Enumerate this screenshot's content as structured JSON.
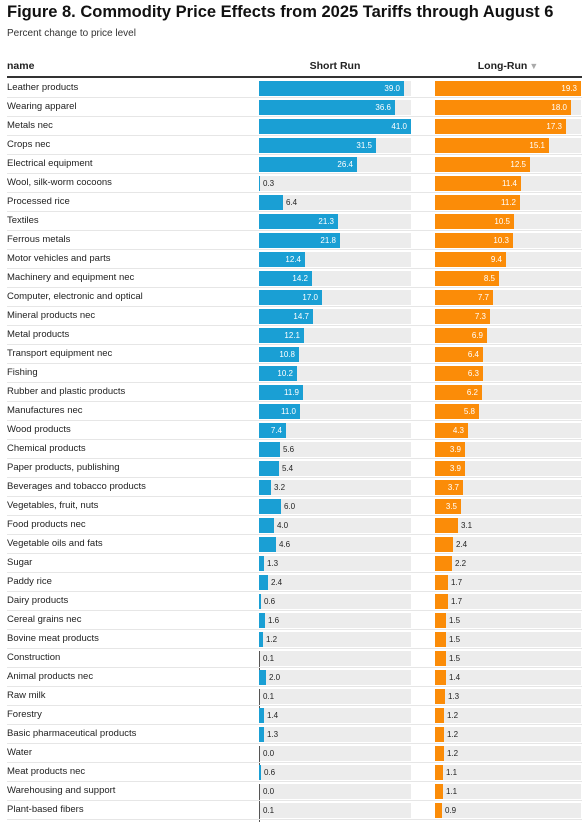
{
  "title": "Figure 8. Commodity Price Effects from 2025 Tariffs through August 6",
  "subtitle": "Percent change to price level",
  "headers": {
    "name": "name",
    "short_run": "Short Run",
    "long_run": "Long-Run",
    "sort_icon": "sort-down-icon"
  },
  "colors": {
    "short_run": "#1a9fd4",
    "long_run": "#fb8c08",
    "track": "#ececec"
  },
  "chart_data": {
    "type": "bar",
    "orientation": "horizontal",
    "title": "Figure 8. Commodity Price Effects from 2025 Tariffs through August 6",
    "subtitle": "Percent change to price level",
    "sorted_by": "Long-Run",
    "sort_order": "descending",
    "series": [
      {
        "name": "Short Run",
        "color": "#1a9fd4",
        "max": 41.0
      },
      {
        "name": "Long-Run",
        "color": "#fb8c08",
        "max": 19.3
      }
    ],
    "rows": [
      {
        "name": "Leather products",
        "short_run": 39.0,
        "long_run": 19.3
      },
      {
        "name": "Wearing apparel",
        "short_run": 36.6,
        "long_run": 18.0
      },
      {
        "name": "Metals nec",
        "short_run": 41.0,
        "long_run": 17.3
      },
      {
        "name": "Crops nec",
        "short_run": 31.5,
        "long_run": 15.1
      },
      {
        "name": "Electrical equipment",
        "short_run": 26.4,
        "long_run": 12.5
      },
      {
        "name": "Wool, silk-worm cocoons",
        "short_run": 0.3,
        "long_run": 11.4
      },
      {
        "name": "Processed rice",
        "short_run": 6.4,
        "long_run": 11.2
      },
      {
        "name": "Textiles",
        "short_run": 21.3,
        "long_run": 10.5
      },
      {
        "name": "Ferrous metals",
        "short_run": 21.8,
        "long_run": 10.3
      },
      {
        "name": "Motor vehicles and parts",
        "short_run": 12.4,
        "long_run": 9.4
      },
      {
        "name": "Machinery and equipment nec",
        "short_run": 14.2,
        "long_run": 8.5
      },
      {
        "name": "Computer, electronic and optical",
        "short_run": 17.0,
        "long_run": 7.7
      },
      {
        "name": "Mineral products nec",
        "short_run": 14.7,
        "long_run": 7.3
      },
      {
        "name": "Metal products",
        "short_run": 12.1,
        "long_run": 6.9
      },
      {
        "name": "Transport equipment nec",
        "short_run": 10.8,
        "long_run": 6.4
      },
      {
        "name": "Fishing",
        "short_run": 10.2,
        "long_run": 6.3
      },
      {
        "name": "Rubber and plastic products",
        "short_run": 11.9,
        "long_run": 6.2
      },
      {
        "name": "Manufactures nec",
        "short_run": 11.0,
        "long_run": 5.8
      },
      {
        "name": "Wood products",
        "short_run": 7.4,
        "long_run": 4.3
      },
      {
        "name": "Chemical products",
        "short_run": 5.6,
        "long_run": 3.9
      },
      {
        "name": "Paper products, publishing",
        "short_run": 5.4,
        "long_run": 3.9
      },
      {
        "name": "Beverages and tobacco products",
        "short_run": 3.2,
        "long_run": 3.7
      },
      {
        "name": "Vegetables, fruit, nuts",
        "short_run": 6.0,
        "long_run": 3.5
      },
      {
        "name": "Food products nec",
        "short_run": 4.0,
        "long_run": 3.1
      },
      {
        "name": "Vegetable oils and fats",
        "short_run": 4.6,
        "long_run": 2.4
      },
      {
        "name": "Sugar",
        "short_run": 1.3,
        "long_run": 2.2
      },
      {
        "name": "Paddy rice",
        "short_run": 2.4,
        "long_run": 1.7
      },
      {
        "name": "Dairy products",
        "short_run": 0.6,
        "long_run": 1.7
      },
      {
        "name": "Cereal grains nec",
        "short_run": 1.6,
        "long_run": 1.5
      },
      {
        "name": "Bovine meat products",
        "short_run": 1.2,
        "long_run": 1.5
      },
      {
        "name": "Construction",
        "short_run": 0.1,
        "long_run": 1.5
      },
      {
        "name": "Animal products nec",
        "short_run": 2.0,
        "long_run": 1.4
      },
      {
        "name": "Raw milk",
        "short_run": 0.1,
        "long_run": 1.3
      },
      {
        "name": "Forestry",
        "short_run": 1.4,
        "long_run": 1.2
      },
      {
        "name": "Basic pharmaceutical products",
        "short_run": 1.3,
        "long_run": 1.2
      },
      {
        "name": "Water",
        "short_run": 0.0,
        "long_run": 1.2
      },
      {
        "name": "Meat products nec",
        "short_run": 0.6,
        "long_run": 1.1
      },
      {
        "name": "Warehousing and support",
        "short_run": 0.0,
        "long_run": 1.1
      },
      {
        "name": "Plant-based fibers",
        "short_run": 0.1,
        "long_run": 0.9
      }
    ]
  }
}
